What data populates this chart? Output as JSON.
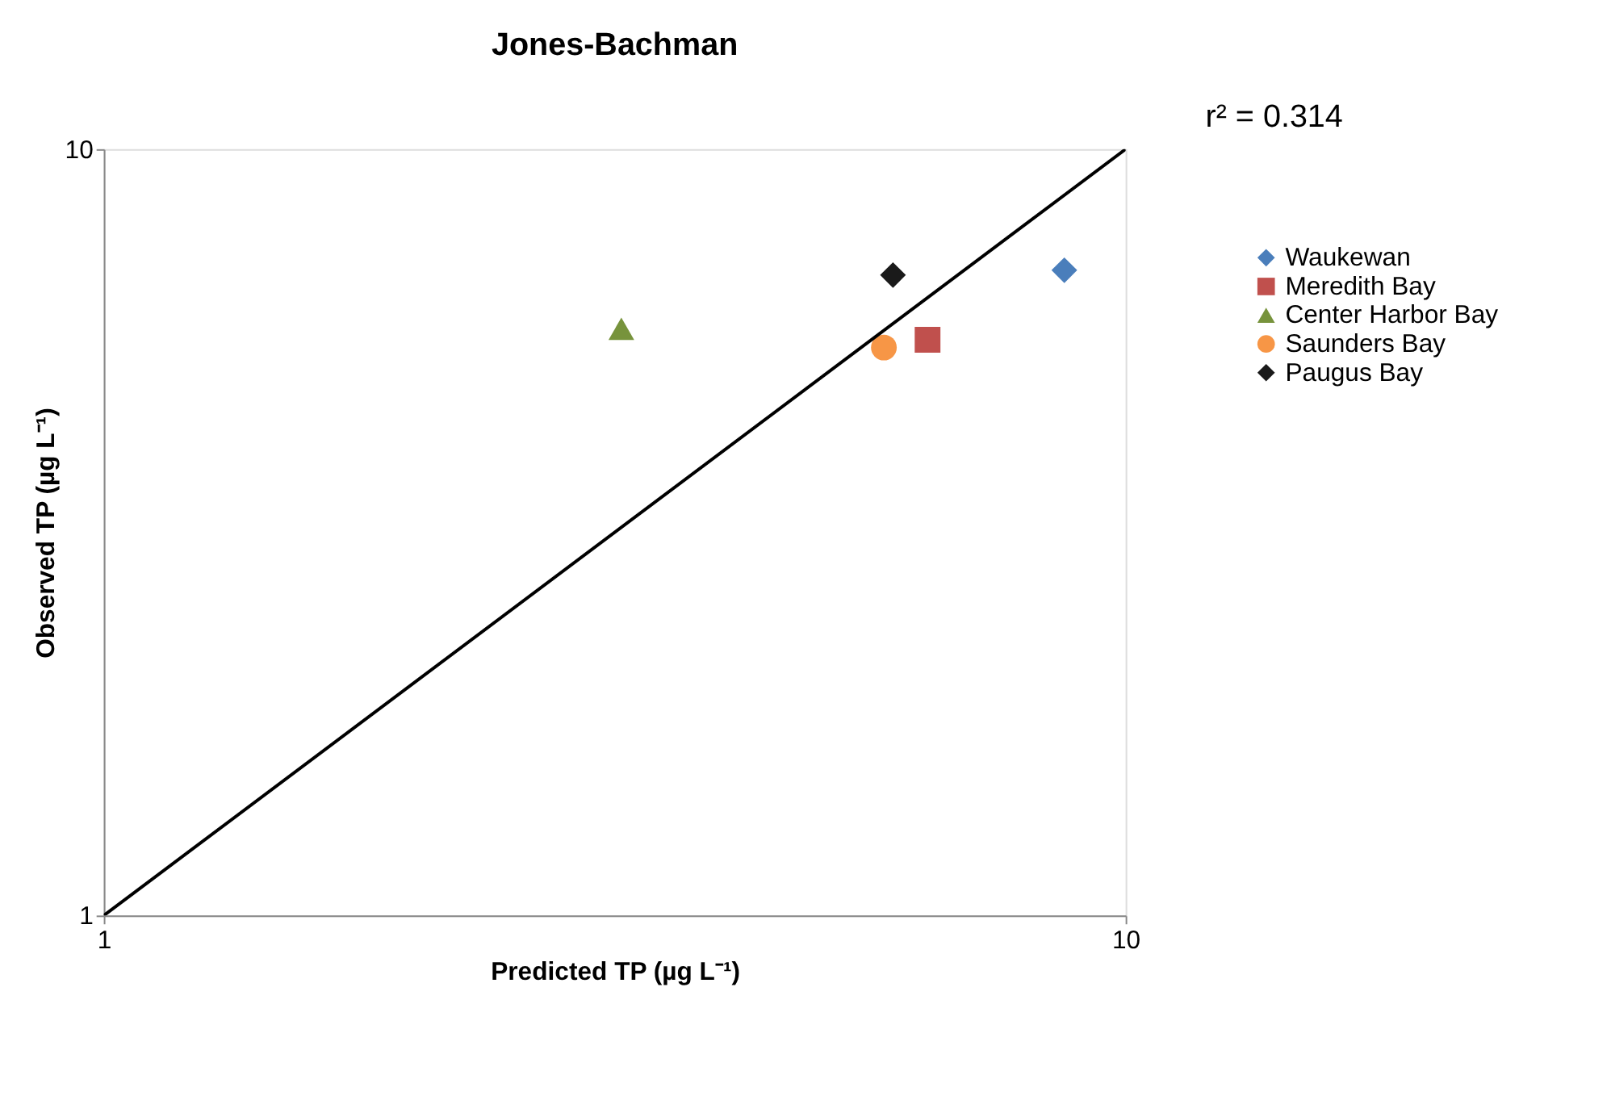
{
  "chart_data": {
    "type": "scatter",
    "title": "Jones-Bachman",
    "xlabel": "Predicted TP (µg L⁻¹)",
    "ylabel": "Observed TP (µg L⁻¹)",
    "log": "xy",
    "xlim": [
      1,
      10
    ],
    "ylim": [
      1,
      10
    ],
    "xticks": [
      1,
      10
    ],
    "yticks": [
      1,
      10
    ],
    "grid": false,
    "legend": "right",
    "annotations": [
      "r² = 0.314"
    ],
    "series": [
      {
        "name": "Waukewan",
        "marker": "diamond",
        "color": "#4a7ebb",
        "x": [
          8.71
        ],
        "values": [
          6.95
        ]
      },
      {
        "name": "Meredith Bay",
        "marker": "square",
        "color": "#c0504d",
        "x": [
          6.4
        ],
        "values": [
          5.64
        ]
      },
      {
        "name": "Center Harbor Bay",
        "marker": "triangle",
        "color": "#77933c",
        "x": [
          3.21
        ],
        "values": [
          5.83
        ]
      },
      {
        "name": "Saunders Bay",
        "marker": "circle",
        "color": "#f79646",
        "x": [
          5.8
        ],
        "values": [
          5.51
        ]
      },
      {
        "name": "Paugus Bay",
        "marker": "diamond",
        "color": "#1a1a1a",
        "x": [
          5.92
        ],
        "values": [
          6.85
        ]
      },
      {
        "type": "line",
        "color": "#000000",
        "x": [
          1,
          10
        ],
        "values": [
          1,
          10
        ]
      }
    ]
  }
}
